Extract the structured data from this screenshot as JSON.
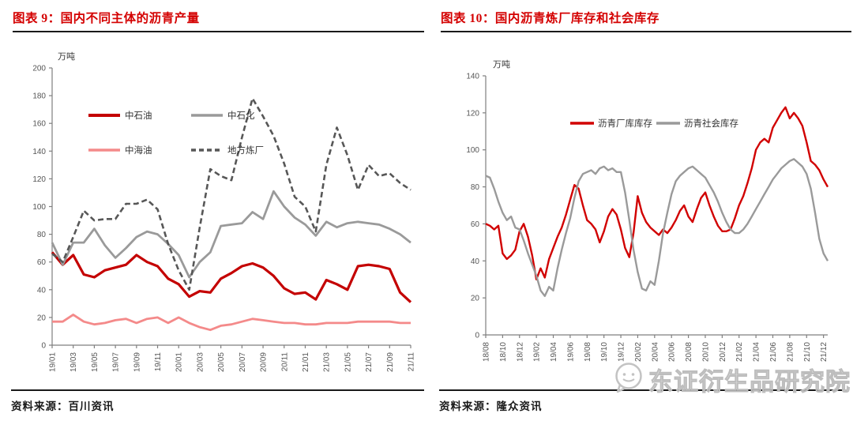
{
  "page": {
    "colors": {
      "title_red": "#D40000",
      "rule_black": "#1A1A1A",
      "watermark_gray": "#BDBDBD"
    },
    "watermark": {
      "text": "东证衍生品研究院"
    }
  },
  "figures": [
    {
      "title": "图表 9：国内不同主体的沥青产量",
      "source": "资料来源：百川资讯",
      "chart_data": {
        "type": "line",
        "title": "国内不同主体的沥青产量",
        "unit": "万吨",
        "ylim": [
          0,
          200
        ],
        "y_tick_labels": [
          "0",
          "20",
          "40",
          "60",
          "80",
          "100",
          "120",
          "140",
          "160",
          "180",
          "200"
        ],
        "x_tick_labels": [
          "19/01",
          "19/03",
          "19/05",
          "19/07",
          "19/09",
          "19/11",
          "20/01",
          "20/03",
          "20/05",
          "20/07",
          "20/09",
          "20/11",
          "21/01",
          "21/03",
          "21/05",
          "21/07",
          "21/09",
          "21/11"
        ],
        "points_per_tick": 2,
        "grid": false,
        "legend_position": "upper-left",
        "series": [
          {
            "name": "中石油",
            "color": "#C40000",
            "width": 3.2,
            "dash": null,
            "values": [
              67,
              58,
              65,
              51,
              49,
              54,
              56,
              58,
              65,
              60,
              57,
              48,
              44,
              35,
              39,
              38,
              48,
              52,
              57,
              59,
              56,
              50,
              41,
              37,
              38,
              33,
              47,
              44,
              40,
              57,
              58,
              57,
              55,
              38,
              31
            ]
          },
          {
            "name": "中石化",
            "color": "#9A9A9A",
            "width": 2.8,
            "dash": null,
            "values": [
              74,
              58,
              74,
              74,
              84,
              72,
              63,
              70,
              78,
              82,
              80,
              73,
              65,
              49,
              60,
              67,
              86,
              87,
              88,
              96,
              91,
              111,
              100,
              92,
              87,
              79,
              89,
              85,
              88,
              89,
              88,
              87,
              84,
              80,
              74
            ]
          },
          {
            "name": "中海油",
            "color": "#F48A8A",
            "width": 2.8,
            "dash": null,
            "values": [
              17,
              17,
              22,
              17,
              15,
              16,
              18,
              19,
              16,
              19,
              20,
              16,
              20,
              16,
              13,
              11,
              14,
              15,
              17,
              19,
              18,
              17,
              16,
              16,
              15,
              15,
              16,
              16,
              16,
              17,
              17,
              17,
              17,
              16,
              16
            ]
          },
          {
            "name": "地方炼厂",
            "color": "#575757",
            "width": 2.6,
            "dash": "7,4",
            "values": [
              66,
              60,
              78,
              97,
              90,
              91,
              91,
              102,
              102,
              105,
              98,
              73,
              54,
              40,
              85,
              127,
              122,
              119,
              150,
              178,
              165,
              151,
              131,
              107,
              100,
              82,
              130,
              157,
              137,
              112,
              130,
              122,
              124,
              117,
              112
            ]
          }
        ]
      }
    },
    {
      "title": "图表 10：国内沥青炼厂库存和社会库存",
      "source": "资料来源：隆众资讯",
      "chart_data": {
        "type": "line",
        "title": "国内沥青炼厂库存和社会库存",
        "unit": "万吨",
        "ylim": [
          0,
          140
        ],
        "y_tick_labels": [
          "0",
          "20",
          "40",
          "60",
          "80",
          "100",
          "120",
          "140"
        ],
        "x_tick_labels": [
          "18/08",
          "18/10",
          "18/12",
          "19/02",
          "19/04",
          "19/06",
          "19/08",
          "19/10",
          "19/12",
          "20/02",
          "20/04",
          "20/06",
          "20/08",
          "20/10",
          "20/12",
          "21/02",
          "21/04",
          "21/06",
          "21/08",
          "21/10",
          "21/12"
        ],
        "points_per_tick": 4,
        "grid": false,
        "legend_position": "upper-center",
        "series": [
          {
            "name": "沥青厂库库存",
            "color": "#D10000",
            "width": 2.4,
            "dash": null,
            "values": [
              60,
              59,
              57,
              59,
              44,
              41,
              43,
              46,
              56,
              60,
              53,
              43,
              30,
              36,
              31,
              41,
              47,
              53,
              58,
              65,
              73,
              81,
              79,
              70,
              62,
              60,
              57,
              50,
              56,
              64,
              68,
              65,
              57,
              47,
              42,
              55,
              75,
              66,
              61,
              58,
              56,
              54,
              57,
              55,
              58,
              62,
              67,
              70,
              64,
              61,
              68,
              74,
              77,
              70,
              64,
              59,
              56,
              56,
              57,
              63,
              70,
              75,
              82,
              90,
              100,
              104,
              106,
              104,
              112,
              116,
              120,
              123,
              117,
              120,
              117,
              113,
              104,
              94,
              92,
              89,
              84,
              80
            ]
          },
          {
            "name": "沥青社会库存",
            "color": "#9A9A9A",
            "width": 2.4,
            "dash": null,
            "values": [
              86,
              85,
              79,
              72,
              66,
              62,
              64,
              58,
              57,
              51,
              44,
              38,
              32,
              24,
              21,
              26,
              24,
              36,
              46,
              55,
              63,
              74,
              83,
              87,
              88,
              89,
              87,
              90,
              91,
              89,
              90,
              88,
              88,
              77,
              62,
              46,
              34,
              25,
              24,
              29,
              27,
              40,
              55,
              66,
              76,
              83,
              86,
              88,
              90,
              91,
              89,
              87,
              85,
              81,
              77,
              72,
              66,
              61,
              57,
              55,
              55,
              57,
              60,
              64,
              68,
              72,
              76,
              80,
              84,
              87,
              90,
              92,
              94,
              95,
              93,
              91,
              87,
              79,
              66,
              52,
              44,
              40
            ]
          }
        ]
      }
    }
  ]
}
